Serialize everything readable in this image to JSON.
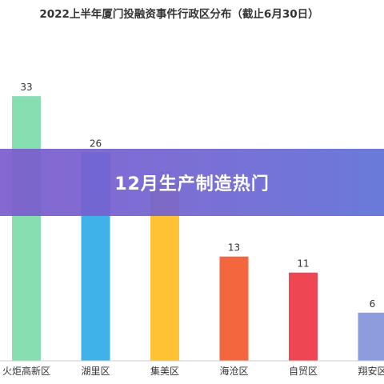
{
  "overlay": {
    "banner_title": "12月生产制造热门"
  },
  "chart_data": {
    "type": "bar",
    "title": "2022上半年厦门投融资事件行政区分布（截止6月30日）",
    "categories": [
      "火炬高新区",
      "湖里区",
      "集美区",
      "海沧区",
      "自贸区",
      "翔安区"
    ],
    "values": [
      33,
      26,
      22,
      13,
      11,
      6
    ],
    "colors": [
      "#86dfb1",
      "#3fb2ea",
      "#ffc234",
      "#f3663e",
      "#ef4654",
      "#8e9bdc"
    ],
    "xlabel": "",
    "ylabel": "",
    "ylim": [
      0,
      40
    ],
    "grid": false,
    "legend": "none",
    "data_labels": true
  }
}
